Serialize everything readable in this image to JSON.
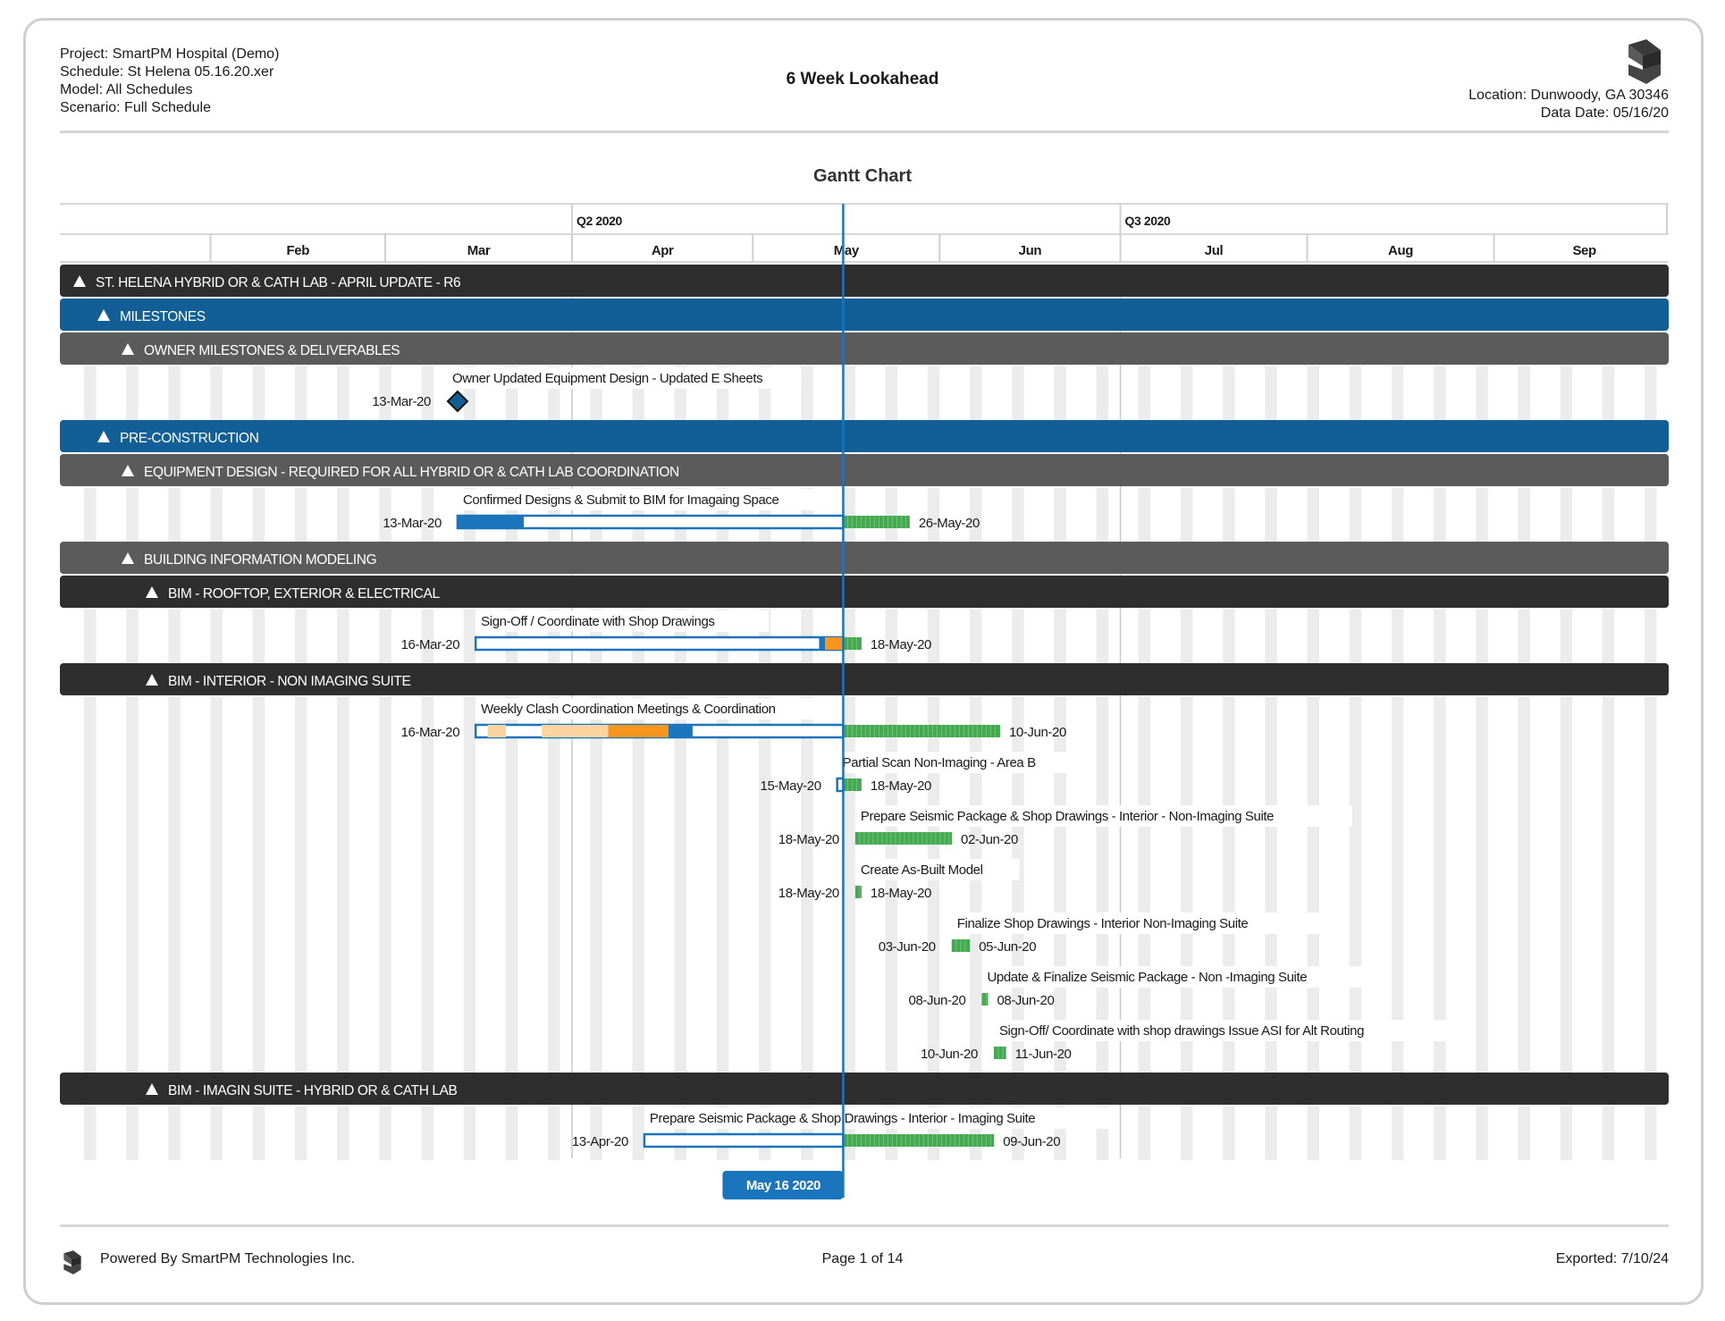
{
  "header": {
    "project": "Project: SmartPM Hospital (Demo)",
    "schedule": "Schedule: St Helena 05.16.20.xer",
    "model": "Model: All Schedules",
    "scenario": "Scenario: Full Schedule",
    "title": "6 Week Lookahead",
    "location": "Location: Dunwoody, GA 30346",
    "data_date": "Data Date: 05/16/20"
  },
  "footer": {
    "powered_by": "Powered By SmartPM Technologies Inc.",
    "page": "Page 1 of 14",
    "exported": "Exported: 7/10/24"
  },
  "colors": {
    "group_dark": "#2e2e2e",
    "group_blue": "#115f96",
    "group_grey": "#5b5b5b",
    "bar_blue": "#1a75bc",
    "bar_green": "#45a94f",
    "bar_orange": "#f7951d",
    "today_line": "#1a75bc"
  },
  "chart_data": {
    "type": "gantt",
    "title": "Gantt Chart",
    "quarters": [
      "Q2 2020",
      "Q3 2020"
    ],
    "months": [
      "Feb",
      "Mar",
      "Apr",
      "May",
      "Jun",
      "Jul",
      "Aug",
      "Sep"
    ],
    "xlim": [
      "2020-01-07",
      "2020-09-30"
    ],
    "data_date": "2020-05-16",
    "data_date_label": "May 16 2020",
    "rows": [
      {
        "kind": "group",
        "level": 0,
        "style": "dark",
        "label": "ST. HELENA HYBRID OR & CATH LAB - APRIL UPDATE - R6"
      },
      {
        "kind": "group",
        "level": 1,
        "style": "blue",
        "label": "MILESTONES"
      },
      {
        "kind": "group",
        "level": 2,
        "style": "grey",
        "label": "OWNER MILESTONES & DELIVERABLES"
      },
      {
        "kind": "task",
        "name": "Owner Updated Equipment Design - Updated E Sheets",
        "milestone": true,
        "start": "2020-03-13",
        "start_label": "13-Mar-20"
      },
      {
        "kind": "group",
        "level": 1,
        "style": "blue",
        "label": "PRE-CONSTRUCTION"
      },
      {
        "kind": "group",
        "level": 2,
        "style": "grey",
        "label": "EQUIPMENT DESIGN - REQUIRED FOR ALL HYBRID OR & CATH LAB COORDINATION"
      },
      {
        "kind": "task",
        "name": "Confirmed Designs & Submit to BIM for Imagaing Space",
        "start": "2020-03-13",
        "finish": "2020-05-26",
        "start_label": "13-Mar-20",
        "finish_label": "26-May-20",
        "progress": [
          {
            "from": "2020-03-13",
            "to": "2020-03-24",
            "color": "blue"
          }
        ]
      },
      {
        "kind": "group",
        "level": 2,
        "style": "grey",
        "label": "BUILDING INFORMATION MODELING"
      },
      {
        "kind": "group",
        "level": 3,
        "style": "dark",
        "label": "BIM - ROOFTOP, EXTERIOR & ELECTRICAL"
      },
      {
        "kind": "task",
        "name": "Sign-Off / Coordinate with Shop Drawings",
        "start": "2020-03-16",
        "finish": "2020-05-18",
        "start_label": "16-Mar-20",
        "finish_label": "18-May-20",
        "progress": [
          {
            "from": "2020-05-12",
            "to": "2020-05-13",
            "color": "blue"
          },
          {
            "from": "2020-05-13",
            "to": "2020-05-16",
            "color": "orange"
          }
        ]
      },
      {
        "kind": "group",
        "level": 3,
        "style": "dark",
        "label": "BIM - INTERIOR - NON IMAGING SUITE"
      },
      {
        "kind": "task",
        "name": "Weekly Clash Coordination Meetings & Coordination",
        "start": "2020-03-16",
        "finish": "2020-06-10",
        "start_label": "16-Mar-20",
        "finish_label": "10-Jun-20",
        "progress": [
          {
            "from": "2020-03-18",
            "to": "2020-03-21",
            "color": "orange_light"
          },
          {
            "from": "2020-03-27",
            "to": "2020-04-07",
            "color": "orange_light"
          },
          {
            "from": "2020-04-07",
            "to": "2020-04-17",
            "color": "orange"
          },
          {
            "from": "2020-04-17",
            "to": "2020-04-21",
            "color": "blue"
          }
        ]
      },
      {
        "kind": "task",
        "name": "Partial Scan Non-Imaging - Area B",
        "start": "2020-05-15",
        "finish": "2020-05-18",
        "start_label": "15-May-20",
        "finish_label": "18-May-20"
      },
      {
        "kind": "task",
        "name": "Prepare Seismic Package & Shop Drawings - Interior - Non-Imaging Suite",
        "start": "2020-05-18",
        "finish": "2020-06-02",
        "start_label": "18-May-20",
        "finish_label": "02-Jun-20"
      },
      {
        "kind": "task",
        "name": "Create As-Built Model",
        "start": "2020-05-18",
        "finish": "2020-05-18",
        "start_label": "18-May-20",
        "finish_label": "18-May-20"
      },
      {
        "kind": "task",
        "name": "Finalize Shop Drawings - Interior Non-Imaging Suite",
        "start": "2020-06-03",
        "finish": "2020-06-05",
        "start_label": "03-Jun-20",
        "finish_label": "05-Jun-20"
      },
      {
        "kind": "task",
        "name": "Update & Finalize Seismic Package - Non -Imaging Suite",
        "start": "2020-06-08",
        "finish": "2020-06-08",
        "start_label": "08-Jun-20",
        "finish_label": "08-Jun-20"
      },
      {
        "kind": "task",
        "name": "Sign-Off/ Coordinate with shop drawings Issue ASI for Alt Routing",
        "start": "2020-06-10",
        "finish": "2020-06-11",
        "start_label": "10-Jun-20",
        "finish_label": "11-Jun-20"
      },
      {
        "kind": "group",
        "level": 3,
        "style": "dark",
        "label": "BIM - IMAGIN SUITE - HYBRID OR & CATH LAB"
      },
      {
        "kind": "task",
        "name": "Prepare Seismic Package & Shop Drawings - Interior - Imaging Suite",
        "start": "2020-04-13",
        "finish": "2020-06-09",
        "start_label": "13-Apr-20",
        "finish_label": "09-Jun-20",
        "progress": []
      }
    ]
  }
}
